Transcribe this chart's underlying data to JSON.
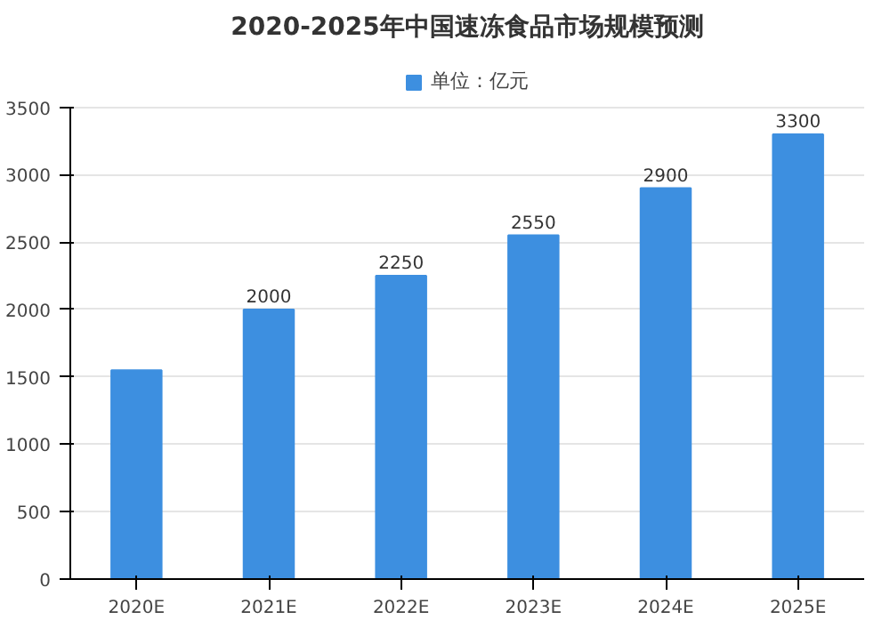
{
  "chart_data": {
    "type": "bar",
    "title": "2020-2025年中国速冻食品市场规模预测",
    "categories": [
      "2020E",
      "2021E",
      "2022E",
      "2023E",
      "2024E",
      "2025E"
    ],
    "series": [
      {
        "name": "单位：亿元",
        "color": "#3d8fe0",
        "values": [
          1550,
          2000,
          2250,
          2550,
          2900,
          3300
        ],
        "value_labels": [
          null,
          "2000",
          "2250",
          "2550",
          "2900",
          "3300"
        ]
      }
    ],
    "ylim": [
      0,
      3500
    ],
    "yticks": [
      0,
      500,
      1000,
      1500,
      2000,
      2500,
      3000,
      3500
    ],
    "grid": "y",
    "legend": "top"
  }
}
